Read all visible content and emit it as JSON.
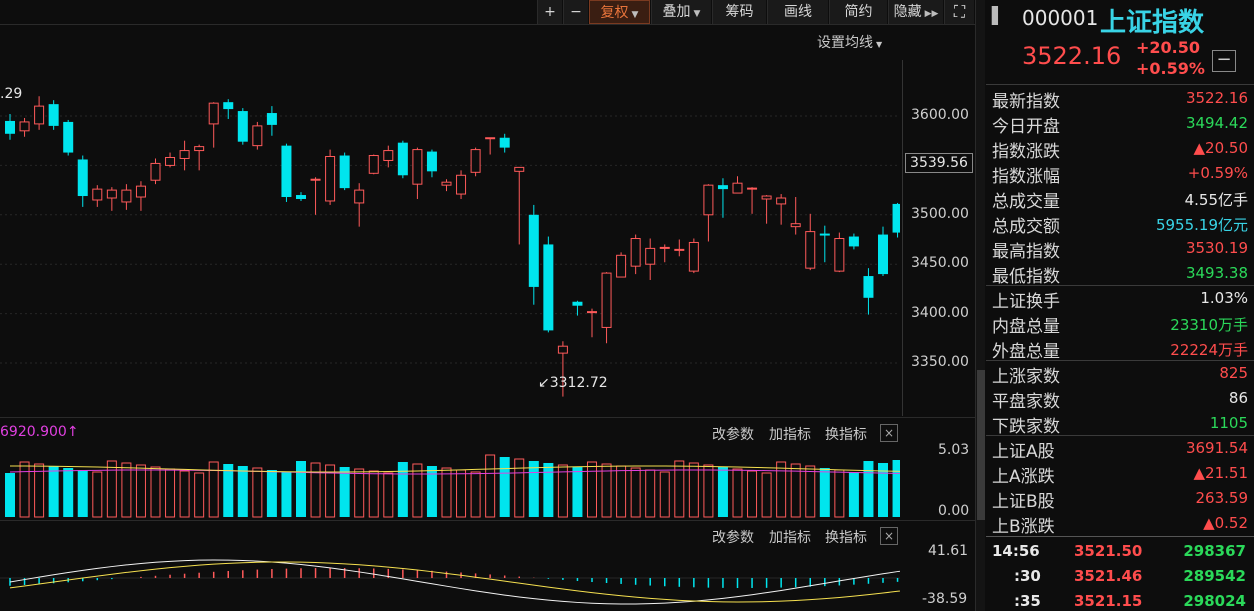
{
  "toolbar": {
    "plus": "+",
    "minus": "−",
    "fuquan": "复权",
    "diejia": "叠加",
    "chouma": "筹码",
    "huaxian": "画线",
    "jianyue": "简约",
    "yincang": "隐藏"
  },
  "main_chart": {
    "settings_label": "设置均线",
    "left_partial_label": ".29",
    "price_marker": "3539.56",
    "y_ticks": [
      "3600.00",
      "3550.00",
      "3500.00",
      "3450.00",
      "3400.00",
      "3350.00"
    ],
    "low_label": "3312.72"
  },
  "volume_panel": {
    "value_label": "6920.900",
    "gaicanshu": "改参数",
    "jiazhibiao": "加指标",
    "huanzhibiao": "换指标",
    "y_top": "5.03",
    "y_bottom": "0.00"
  },
  "macd_panel": {
    "gaicanshu": "改参数",
    "jiazhibiao": "加指标",
    "huanzhibiao": "换指标",
    "y_top": "41.61",
    "y_bottom": "-38.59"
  },
  "quote": {
    "code": "000001",
    "name": "上证指数",
    "price": "3522.16",
    "change": "+20.50",
    "change_pct": "+0.59%"
  },
  "stats": [
    {
      "k": "最新指数",
      "v": "3522.16",
      "c": "red"
    },
    {
      "k": "今日开盘",
      "v": "3494.42",
      "c": "green"
    },
    {
      "k": "指数涨跌",
      "v": "▲20.50",
      "c": "red"
    },
    {
      "k": "指数涨幅",
      "v": "+0.59%",
      "c": "red"
    },
    {
      "k": "总成交量",
      "v": "4.55亿手",
      "c": "white"
    },
    {
      "k": "总成交额",
      "v": "5955.19亿元",
      "c": "cyan"
    },
    {
      "k": "最高指数",
      "v": "3530.19",
      "c": "red"
    },
    {
      "k": "最低指数",
      "v": "3493.38",
      "c": "green"
    },
    {
      "k": "上证换手",
      "v": "1.03%",
      "c": "white"
    },
    {
      "k": "内盘总量",
      "v": "23310万手",
      "c": "green"
    },
    {
      "k": "外盘总量",
      "v": "22224万手",
      "c": "red"
    },
    {
      "k": "上涨家数",
      "v": "825",
      "c": "red"
    },
    {
      "k": "平盘家数",
      "v": "86",
      "c": "white"
    },
    {
      "k": "下跌家数",
      "v": "1105",
      "c": "green"
    },
    {
      "k": "上证A股",
      "v": "3691.54",
      "c": "red"
    },
    {
      "k": "上A涨跌",
      "v": "▲21.51",
      "c": "red"
    },
    {
      "k": "上证B股",
      "v": "263.59",
      "c": "red"
    },
    {
      "k": "上B涨跌",
      "v": "▲0.52",
      "c": "red"
    }
  ],
  "ticks": [
    {
      "t": "14:56",
      "p": "3521.50",
      "v": "298367"
    },
    {
      "t": ":30",
      "p": "3521.46",
      "v": "289542"
    },
    {
      "t": ":35",
      "p": "3521.15",
      "v": "298024"
    }
  ],
  "candles": [
    [
      3595,
      3582,
      3602,
      3576
    ],
    [
      3585,
      3594,
      3598,
      3579
    ],
    [
      3592,
      3610,
      3620,
      3586
    ],
    [
      3612,
      3590,
      3616,
      3586
    ],
    [
      3594,
      3563,
      3596,
      3560
    ],
    [
      3556,
      3519,
      3560,
      3508
    ],
    [
      3515,
      3526,
      3530,
      3508
    ],
    [
      3517,
      3525,
      3528,
      3504
    ],
    [
      3513,
      3525,
      3531,
      3505
    ],
    [
      3518,
      3529,
      3534,
      3504
    ],
    [
      3535,
      3552,
      3557,
      3531
    ],
    [
      3550,
      3558,
      3563,
      3548
    ],
    [
      3557,
      3565,
      3575,
      3545
    ],
    [
      3565,
      3569,
      3571,
      3545
    ],
    [
      3592,
      3613,
      3614,
      3568
    ],
    [
      3614,
      3607,
      3617,
      3597
    ],
    [
      3605,
      3574,
      3608,
      3571
    ],
    [
      3570,
      3590,
      3594,
      3566
    ],
    [
      3603,
      3591,
      3610,
      3580
    ],
    [
      3570,
      3518,
      3572,
      3513
    ],
    [
      3520,
      3516,
      3523,
      3514
    ],
    [
      3536,
      3536,
      3538,
      3500
    ],
    [
      3514,
      3559,
      3566,
      3510
    ],
    [
      3560,
      3527,
      3563,
      3525
    ],
    [
      3512,
      3525,
      3532,
      3488
    ],
    [
      3542,
      3560,
      3561,
      3541
    ],
    [
      3555,
      3565,
      3570,
      3548
    ],
    [
      3573,
      3540,
      3575,
      3537
    ],
    [
      3531,
      3566,
      3568,
      3516
    ],
    [
      3564,
      3544,
      3566,
      3538
    ],
    [
      3530,
      3533,
      3536,
      3524
    ],
    [
      3521,
      3540,
      3545,
      3516
    ],
    [
      3543,
      3566,
      3568,
      3539
    ],
    [
      3578,
      3578,
      3578,
      3561
    ],
    [
      3578,
      3568,
      3582,
      3563
    ],
    [
      3544,
      3548,
      3547,
      3470
    ],
    [
      3500,
      3427,
      3510,
      3409
    ],
    [
      3470,
      3383,
      3478,
      3381
    ],
    [
      3360,
      3367,
      3372,
      3316
    ],
    [
      3412,
      3408,
      3413,
      3398
    ],
    [
      3402,
      3402,
      3405,
      3376
    ],
    [
      3386,
      3441,
      3442,
      3370
    ],
    [
      3437,
      3459,
      3462,
      3451
    ],
    [
      3448,
      3476,
      3480,
      3440
    ],
    [
      3450,
      3466,
      3476,
      3434
    ],
    [
      3467,
      3467,
      3470,
      3452
    ],
    [
      3465,
      3465,
      3475,
      3458
    ],
    [
      3443,
      3472,
      3476,
      3441
    ],
    [
      3500,
      3530,
      3531,
      3473
    ],
    [
      3530,
      3526,
      3537,
      3497
    ],
    [
      3522,
      3532,
      3539,
      3522
    ],
    [
      3527,
      3527,
      3528,
      3501
    ],
    [
      3516,
      3519,
      3520,
      3491
    ],
    [
      3511,
      3517,
      3521,
      3490
    ],
    [
      3488,
      3491,
      3518,
      3480
    ],
    [
      3446,
      3483,
      3501,
      3444
    ],
    [
      3481,
      3479,
      3489,
      3452
    ],
    [
      3443,
      3476,
      3482,
      3442
    ],
    [
      3478,
      3468,
      3481,
      3465
    ],
    [
      3438,
      3416,
      3446,
      3399
    ],
    [
      3480,
      3440,
      3488,
      3438
    ],
    [
      3511,
      3482,
      3512,
      3477
    ],
    [
      3520,
      3537,
      3540,
      3517
    ],
    [
      3539,
      3536,
      3540,
      3514
    ],
    [
      3532,
      3504,
      3534,
      3497
    ],
    [
      3527,
      3494,
      3529,
      3493
    ]
  ]
}
